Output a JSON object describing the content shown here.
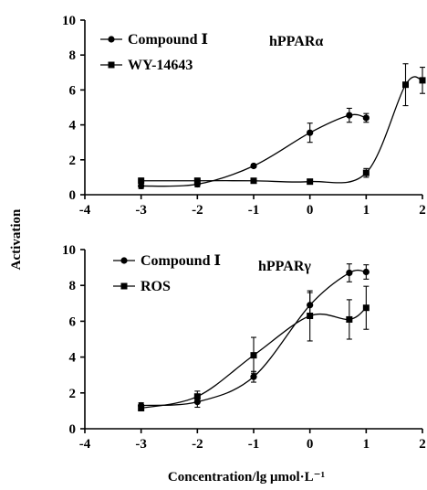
{
  "colors": {
    "ink": "#000000",
    "background": "#ffffff"
  },
  "y_axis_label": "Activation",
  "x_axis_label": "Concentration/lg μmol·L⁻¹",
  "chart_data": [
    {
      "type": "line",
      "panel_label": "hPPARα",
      "xlim": [
        -4,
        2
      ],
      "ylim": [
        0,
        10
      ],
      "x_ticks": [
        "-4",
        "-3",
        "-2",
        "-1",
        "0",
        "1",
        "2"
      ],
      "y_ticks": [
        "0",
        "2",
        "4",
        "6",
        "8",
        "10"
      ],
      "legend_position": "top-left",
      "series": [
        {
          "name": "Compound Ⅰ",
          "marker": "circle",
          "x": [
            -3,
            -2,
            -1,
            0,
            0.7,
            1
          ],
          "y": [
            0.5,
            0.6,
            1.65,
            3.55,
            4.55,
            4.4
          ],
          "err": [
            0.15,
            0.15,
            0.1,
            0.55,
            0.4,
            0.25
          ]
        },
        {
          "name": "WY-14643",
          "marker": "square",
          "x": [
            -3,
            -2,
            -1,
            0,
            1,
            1.7,
            2
          ],
          "y": [
            0.8,
            0.8,
            0.8,
            0.75,
            1.25,
            6.3,
            6.55
          ],
          "err": [
            0.15,
            0.15,
            0.1,
            0.1,
            0.25,
            1.2,
            0.75
          ]
        }
      ]
    },
    {
      "type": "line",
      "panel_label": "hPPARγ",
      "xlim": [
        -4,
        2
      ],
      "ylim": [
        0,
        10
      ],
      "x_ticks": [
        "-4",
        "-3",
        "-2",
        "-1",
        "0",
        "1",
        "2"
      ],
      "y_ticks": [
        "0",
        "2",
        "4",
        "6",
        "8",
        "10"
      ],
      "legend_position": "top-left",
      "series": [
        {
          "name": "Compound Ⅰ",
          "marker": "circle",
          "x": [
            -3,
            -2,
            -1,
            0,
            0.7,
            1
          ],
          "y": [
            1.3,
            1.5,
            2.9,
            6.9,
            8.7,
            8.75
          ],
          "err": [
            0.15,
            0.3,
            0.3,
            0.7,
            0.5,
            0.4
          ]
        },
        {
          "name": "ROS",
          "marker": "square",
          "x": [
            -3,
            -2,
            -1,
            0,
            0.7,
            1
          ],
          "y": [
            1.15,
            1.8,
            4.1,
            6.3,
            6.1,
            6.75
          ],
          "err": [
            0.15,
            0.3,
            1.0,
            1.4,
            1.1,
            1.2
          ]
        }
      ]
    }
  ]
}
